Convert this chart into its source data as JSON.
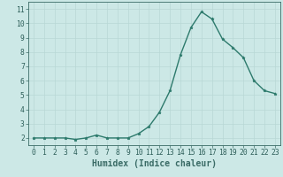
{
  "x": [
    0,
    1,
    2,
    3,
    4,
    5,
    6,
    7,
    8,
    9,
    10,
    11,
    12,
    13,
    14,
    15,
    16,
    17,
    18,
    19,
    20,
    21,
    22,
    23
  ],
  "y": [
    2.0,
    2.0,
    2.0,
    2.0,
    1.9,
    2.0,
    2.2,
    2.0,
    2.0,
    2.0,
    2.3,
    2.8,
    3.8,
    5.3,
    7.8,
    9.7,
    10.8,
    10.3,
    8.9,
    8.3,
    7.6,
    6.0,
    5.3,
    5.1
  ],
  "xlabel": "Humidex (Indice chaleur)",
  "xlim": [
    -0.5,
    23.5
  ],
  "ylim": [
    1.5,
    11.5
  ],
  "yticks": [
    2,
    3,
    4,
    5,
    6,
    7,
    8,
    9,
    10,
    11
  ],
  "xticks": [
    0,
    1,
    2,
    3,
    4,
    5,
    6,
    7,
    8,
    9,
    10,
    11,
    12,
    13,
    14,
    15,
    16,
    17,
    18,
    19,
    20,
    21,
    22,
    23
  ],
  "line_color": "#2d7a6c",
  "marker": "*",
  "marker_size": 2.5,
  "bg_color": "#cce8e6",
  "grid_color": "#b8d8d5",
  "axis_color": "#3a6b66",
  "tick_label_color": "#2e5f5a",
  "xlabel_fontsize": 7,
  "tick_fontsize": 5.8,
  "line_width": 1.0
}
